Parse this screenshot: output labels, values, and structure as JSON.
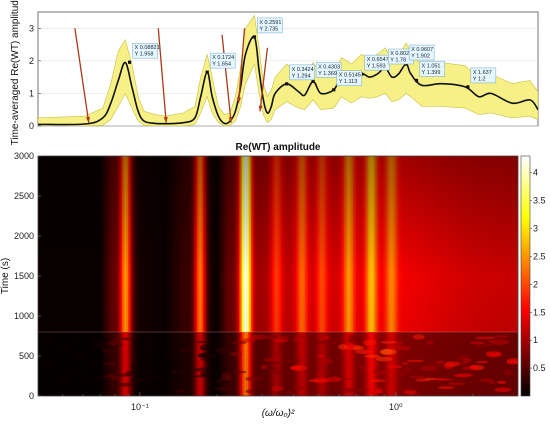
{
  "chart_data": [
    {
      "type": "area",
      "ylabel": "Time-averaged Re(WT) amplitude",
      "ylim": [
        0,
        3.5
      ],
      "yticks": [
        "0",
        "1",
        "2",
        "3"
      ],
      "xscale": "log",
      "xlim": [
        0.04,
        3.0
      ],
      "band_color": "#f6f086",
      "line_color": "#111111",
      "arrow_color": "#a93a1c",
      "datatip_color": "#e6f6ff",
      "series": [
        {
          "x": [
            0.04,
            0.06,
            0.07,
            0.075,
            0.08,
            0.085,
            0.09,
            0.095,
            0.1,
            0.11,
            0.12,
            0.14,
            0.155,
            0.163,
            0.1724,
            0.18,
            0.19,
            0.2,
            0.21,
            0.22,
            0.23,
            0.24,
            0.2591,
            0.27,
            0.28,
            0.29,
            0.3,
            0.31,
            0.3424,
            0.38,
            0.4,
            0.4303,
            0.46,
            0.5145,
            0.55,
            0.6,
            0.6547,
            0.7,
            0.75,
            0.8021,
            0.85,
            0.9,
            0.9607,
            1.0,
            1.1,
            1.3,
            1.6,
            1.8,
            2.0,
            2.4,
            2.8,
            3.0
          ],
          "y": [
            0.05,
            0.06,
            0.25,
            0.7,
            1.4,
            1.95,
            1.2,
            0.45,
            0.15,
            0.08,
            0.07,
            0.1,
            0.25,
            0.9,
            1.654,
            0.9,
            0.3,
            0.08,
            0.15,
            0.45,
            1.2,
            2.2,
            2.735,
            1.7,
            0.8,
            0.4,
            0.6,
            1.0,
            1.294,
            1.05,
            0.95,
            1.369,
            1.0,
            1.113,
            1.5,
            1.3,
            1.593,
            1.5,
            1.6,
            1.78,
            1.5,
            1.6,
            1.902,
            1.6,
            1.25,
            1.3,
            1.2,
            0.9,
            1.0,
            0.7,
            0.8,
            0.5
          ],
          "lower": [
            0.0,
            0.0,
            0.02,
            0.2,
            0.6,
            1.0,
            0.55,
            0.15,
            0.02,
            0.0,
            0.0,
            0.0,
            0.05,
            0.4,
            0.9,
            0.4,
            0.1,
            0.0,
            0.02,
            0.15,
            0.6,
            1.3,
            1.9,
            1.0,
            0.35,
            0.1,
            0.2,
            0.5,
            0.75,
            0.55,
            0.5,
            0.8,
            0.5,
            0.55,
            0.9,
            0.7,
            0.9,
            0.85,
            0.9,
            1.0,
            0.75,
            0.8,
            1.0,
            0.9,
            0.6,
            0.6,
            0.55,
            0.35,
            0.4,
            0.25,
            0.3,
            0.2
          ],
          "upper": [
            0.25,
            0.3,
            0.55,
            1.3,
            2.3,
            2.65,
            1.9,
            0.9,
            0.45,
            0.35,
            0.3,
            0.4,
            0.6,
            1.5,
            2.2,
            1.5,
            0.6,
            0.35,
            0.4,
            0.9,
            1.8,
            3.0,
            3.4,
            2.4,
            1.3,
            0.9,
            1.1,
            1.5,
            1.9,
            1.55,
            1.45,
            1.95,
            1.55,
            1.6,
            2.1,
            1.9,
            2.2,
            2.05,
            2.2,
            2.4,
            2.05,
            2.15,
            2.55,
            2.25,
            1.85,
            1.95,
            1.85,
            1.45,
            1.6,
            1.3,
            1.4,
            1.05
          ]
        }
      ],
      "datatips": [
        {
          "x_label": "X 0.08821",
          "y_label": "Y 1.958",
          "x": 0.08821,
          "y": 1.958
        },
        {
          "x_label": "X 0.1724",
          "y_label": "Y 1.654",
          "x": 0.1724,
          "y": 1.654
        },
        {
          "x_label": "X 0.2591",
          "y_label": "Y 2.735",
          "x": 0.2591,
          "y": 2.735
        },
        {
          "x_label": "X 0.3424",
          "y_label": "Y 1.294",
          "x": 0.3424,
          "y": 1.294
        },
        {
          "x_label": "X 0.4303",
          "y_label": "Y 1.369",
          "x": 0.4303,
          "y": 1.369
        },
        {
          "x_label": "X 0.5145",
          "y_label": "Y 1.113",
          "x": 0.5145,
          "y": 1.113
        },
        {
          "x_label": "X 0.6547",
          "y_label": "Y 1.593",
          "x": 0.6547,
          "y": 1.593
        },
        {
          "x_label": "X 0.8021",
          "y_label": "Y 1.78",
          "x": 0.8021,
          "y": 1.78
        },
        {
          "x_label": "X 0.9607",
          "y_label": "Y 1.902",
          "x": 0.9607,
          "y": 1.902
        },
        {
          "x_label": "X 1.051",
          "y_label": "Y 1.399",
          "x": 1.051,
          "y": 1.399
        },
        {
          "x_label": "X 1.637",
          "y_label": "Y 1.2",
          "x": 1.637,
          "y": 1.2
        }
      ],
      "arrows": [
        {
          "from": [
            0.055,
            3.0
          ],
          "to": [
            0.062,
            0.1
          ]
        },
        {
          "from": [
            0.113,
            3.0
          ],
          "to": [
            0.121,
            0.1
          ]
        },
        {
          "from": [
            0.196,
            2.8
          ],
          "to": [
            0.212,
            0.1
          ]
        },
        {
          "from": [
            0.238,
            3.0
          ],
          "to": [
            0.226,
            0.7
          ]
        },
        {
          "from": [
            0.29,
            2.4
          ],
          "to": [
            0.272,
            0.45
          ]
        }
      ]
    },
    {
      "type": "heatmap",
      "title": "Re(WT) amplitude",
      "xlabel": "(ω/ω₀)²",
      "ylabel": "Time (s)",
      "xscale": "log",
      "xlim": [
        0.04,
        3.0
      ],
      "ylim": [
        0,
        3000
      ],
      "xticks": [
        {
          "value": 0.1,
          "label": "10⁻¹"
        },
        {
          "value": 1,
          "label": "10⁰"
        }
      ],
      "yticks": [
        0,
        500,
        1000,
        1500,
        2000,
        2500,
        3000
      ],
      "colormap": "hot",
      "clim": [
        0,
        4.3
      ],
      "colorbar_ticks": [
        "0.5",
        "1",
        "1.5",
        "2",
        "2.5",
        "3",
        "3.5",
        "4"
      ],
      "colorbar_tick_values": [
        0.5,
        1,
        1.5,
        2,
        2.5,
        3,
        3.5,
        4
      ],
      "transition_time": 800,
      "bands": [
        {
          "x": 0.088,
          "amplitude": 2.5
        },
        {
          "x": 0.172,
          "amplitude": 2.3
        },
        {
          "x": 0.259,
          "amplitude": 4.2
        },
        {
          "x": 0.342,
          "amplitude": 1.9
        },
        {
          "x": 0.43,
          "amplitude": 2.2
        },
        {
          "x": 0.514,
          "amplitude": 2.0
        },
        {
          "x": 0.655,
          "amplitude": 2.5
        },
        {
          "x": 0.802,
          "amplitude": 2.8
        },
        {
          "x": 0.961,
          "amplitude": 2.4
        }
      ],
      "background_amplitude": [
        {
          "x": 0.04,
          "value": 0.05
        },
        {
          "x": 0.07,
          "value": 0.05
        },
        {
          "x": 0.078,
          "value": 0.6
        },
        {
          "x": 0.1,
          "value": 0.12
        },
        {
          "x": 0.125,
          "value": 0.05
        },
        {
          "x": 0.15,
          "value": 0.35
        },
        {
          "x": 0.2,
          "value": 0.05
        },
        {
          "x": 0.22,
          "value": 0.6
        },
        {
          "x": 0.3,
          "value": 1.0
        },
        {
          "x": 0.4,
          "value": 1.2
        },
        {
          "x": 0.6,
          "value": 1.3
        },
        {
          "x": 1.0,
          "value": 1.5
        },
        {
          "x": 1.5,
          "value": 1.35
        },
        {
          "x": 2.0,
          "value": 1.25
        },
        {
          "x": 3.0,
          "value": 1.2
        }
      ]
    }
  ]
}
